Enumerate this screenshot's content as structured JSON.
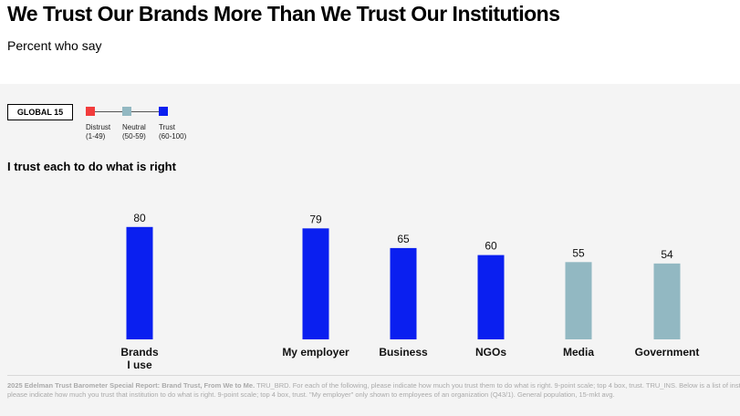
{
  "header": {
    "title": "We Trust Our Brands More Than We Trust Our Institutions",
    "subtitle": "Percent who say"
  },
  "badge": "GLOBAL 15",
  "legend": [
    {
      "label": "Distrust",
      "range": "(1-49)",
      "color": "#f23c3c"
    },
    {
      "label": "Neutral",
      "range": "(50-59)",
      "color": "#92b8c2"
    },
    {
      "label": "Trust",
      "range": "(60-100)",
      "color": "#0a1ff0"
    }
  ],
  "section_title": "I trust each to do what is right",
  "chart_data": {
    "type": "bar",
    "categories": [
      "Brands\nI use",
      "My employer",
      "Business",
      "NGOs",
      "Media",
      "Government"
    ],
    "values": [
      80,
      79,
      65,
      60,
      55,
      54
    ],
    "colors": [
      "#0a1ff0",
      "#0a1ff0",
      "#0a1ff0",
      "#0a1ff0",
      "#92b8c2",
      "#92b8c2"
    ],
    "ylim": [
      0,
      100
    ],
    "grid": false,
    "data_labels": true
  },
  "footer": {
    "bold": "2025 Edelman Trust Barometer Special Report: Brand Trust, From We to Me.",
    "line1": " TRU_BRD. For each of the following, please indicate how much you trust them to do what is right. 9-point scale; top 4 box, trust. TRU_INS. Below is a list of institutions. For each one,",
    "line2": "please indicate how much you trust that institution to do what is right. 9-point scale; top 4 box, trust. \"My employer\" only shown to employees of an organization (Q43/1). General population, 15-mkt avg."
  }
}
